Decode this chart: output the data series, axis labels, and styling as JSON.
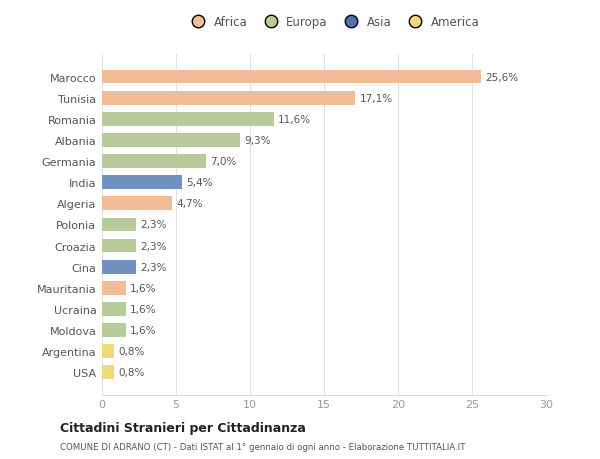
{
  "countries": [
    "Marocco",
    "Tunisia",
    "Romania",
    "Albania",
    "Germania",
    "India",
    "Algeria",
    "Polonia",
    "Croazia",
    "Cina",
    "Mauritania",
    "Ucraina",
    "Moldova",
    "Argentina",
    "USA"
  ],
  "values": [
    25.6,
    17.1,
    11.6,
    9.3,
    7.0,
    5.4,
    4.7,
    2.3,
    2.3,
    2.3,
    1.6,
    1.6,
    1.6,
    0.8,
    0.8
  ],
  "labels": [
    "25,6%",
    "17,1%",
    "11,6%",
    "9,3%",
    "7,0%",
    "5,4%",
    "4,7%",
    "2,3%",
    "2,3%",
    "2,3%",
    "1,6%",
    "1,6%",
    "1,6%",
    "0,8%",
    "0,8%"
  ],
  "colors": [
    "#F2BC96",
    "#F2BC96",
    "#B8CB9A",
    "#B8CB9A",
    "#B8CB9A",
    "#7191C0",
    "#F2BC96",
    "#B8CB9A",
    "#B8CB9A",
    "#7191C0",
    "#F2BC96",
    "#B8CB9A",
    "#B8CB9A",
    "#F0D97A",
    "#F0D97A"
  ],
  "legend": [
    {
      "label": "Africa",
      "color": "#F2BC96"
    },
    {
      "label": "Europa",
      "color": "#B8CB9A"
    },
    {
      "label": "Asia",
      "color": "#5470B0"
    },
    {
      "label": "America",
      "color": "#F0D97A"
    }
  ],
  "xlim": [
    0,
    30
  ],
  "xticks": [
    0,
    5,
    10,
    15,
    20,
    25,
    30
  ],
  "title_bold": "Cittadini Stranieri per Cittadinanza",
  "subtitle": "COMUNE DI ADRANO (CT) - Dati ISTAT al 1° gennaio di ogni anno - Elaborazione TUTTITALIA.IT",
  "background_color": "#ffffff",
  "bar_height": 0.65,
  "grid_color": "#e0e0e0",
  "label_color": "#555555",
  "tick_color": "#999999"
}
